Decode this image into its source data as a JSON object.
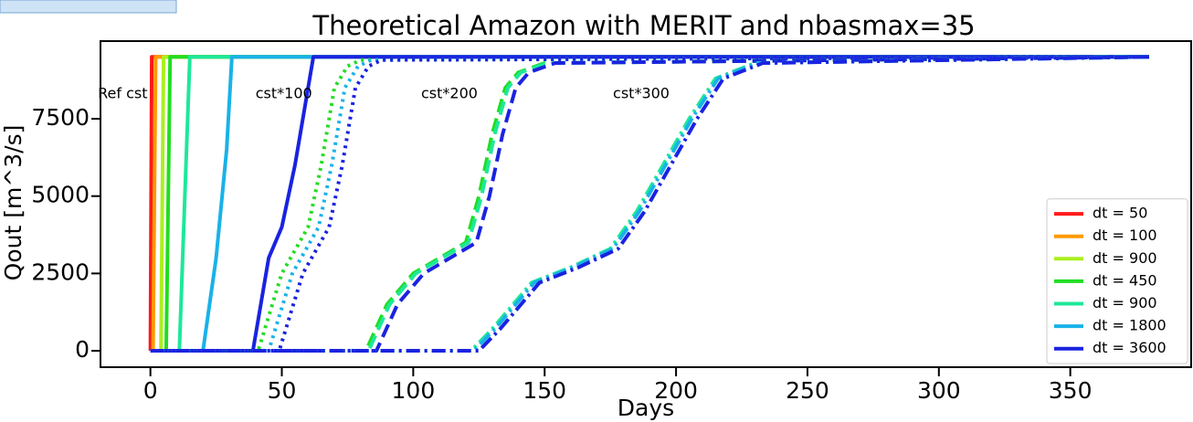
{
  "chart_data": {
    "type": "line",
    "title": "Theoretical Amazon with MERIT and nbasmax=35",
    "x_label": "Days",
    "y_label": "Qout [m^3/s]",
    "xlim": [
      -19,
      396
    ],
    "ylim": [
      -530,
      10010
    ],
    "xticks": [
      0,
      50,
      100,
      150,
      200,
      250,
      300,
      350
    ],
    "yticks": [
      0,
      2500,
      5000,
      7500
    ],
    "legend": "lower right",
    "annotations": [
      {
        "text": "Ref cst",
        "x": -20,
        "y": 8300
      },
      {
        "text": "cst*100",
        "x": 40,
        "y": 8300
      },
      {
        "text": "cst*200",
        "x": 103,
        "y": 8300
      },
      {
        "text": "cst*300",
        "x": 176,
        "y": 8300
      }
    ],
    "series": [
      {
        "name": "dt = 50",
        "color": "#ff1a1a",
        "style": "solid",
        "x": [
          0,
          0,
          0.5,
          380
        ],
        "values": [
          0,
          0,
          9500,
          9500
        ]
      },
      {
        "name": "dt = 100",
        "color": "#ff9900",
        "style": "solid",
        "x": [
          0,
          1,
          2,
          380
        ],
        "values": [
          0,
          0,
          9500,
          9500
        ]
      },
      {
        "name": "dt = 900",
        "color": "#aaf01e",
        "style": "solid",
        "x": [
          0,
          4,
          5,
          380
        ],
        "values": [
          0,
          0,
          9500,
          9500
        ]
      },
      {
        "name": "dt = 450",
        "color": "#22dd22",
        "style": "solid",
        "x": [
          0,
          6,
          7.5,
          380
        ],
        "values": [
          0,
          0,
          9500,
          9500
        ]
      },
      {
        "name": "dt = 900",
        "color": "#1de89a",
        "style": "solid",
        "x": [
          0,
          11,
          15,
          380
        ],
        "values": [
          0,
          0,
          9500,
          9500
        ]
      },
      {
        "name": "dt = 1800",
        "color": "#19b2e8",
        "style": "solid",
        "x": [
          0,
          20,
          25,
          29,
          31,
          380
        ],
        "values": [
          0,
          0,
          3000,
          6500,
          9500,
          9500
        ]
      },
      {
        "name": "dt = 3600",
        "color": "#1a23e0",
        "style": "solid",
        "x": [
          0,
          39,
          45,
          50,
          55,
          60,
          62,
          380
        ],
        "values": [
          0,
          0,
          3000,
          4000,
          6000,
          8500,
          9500,
          9500
        ]
      },
      {
        "color": "#22dd22",
        "style": "dotted",
        "x": [
          0,
          41,
          50,
          60,
          65,
          70,
          75,
          80,
          380
        ],
        "values": [
          0,
          0,
          2500,
          4000,
          6000,
          8500,
          9200,
          9400,
          9500
        ]
      },
      {
        "color": "#19b2e8",
        "style": "dotted",
        "x": [
          0,
          45,
          54,
          64,
          69,
          74,
          79,
          84,
          380
        ],
        "values": [
          0,
          0,
          2500,
          4000,
          6000,
          8500,
          9200,
          9400,
          9500
        ]
      },
      {
        "color": "#1a23e0",
        "style": "dotted",
        "x": [
          0,
          49,
          58,
          68,
          73,
          78,
          83,
          88,
          380
        ],
        "values": [
          0,
          0,
          2500,
          4000,
          6000,
          8500,
          9200,
          9400,
          9500
        ]
      },
      {
        "color": "#22dd22",
        "style": "dashed",
        "x": [
          0,
          82,
          90,
          100,
          110,
          120,
          125,
          130,
          135,
          140,
          150,
          380
        ],
        "values": [
          0,
          0,
          1500,
          2500,
          3000,
          3500,
          5000,
          7000,
          8500,
          9000,
          9300,
          9500
        ]
      },
      {
        "color": "#1de89a",
        "style": "dashed",
        "x": [
          0,
          83,
          91,
          101,
          111,
          121,
          126,
          131,
          136,
          141,
          151,
          380
        ],
        "values": [
          0,
          0,
          1500,
          2500,
          3000,
          3500,
          5000,
          7000,
          8500,
          9000,
          9300,
          9500
        ]
      },
      {
        "color": "#1a23e0",
        "style": "dashed",
        "x": [
          0,
          86,
          94,
          104,
          114,
          124,
          129,
          134,
          139,
          144,
          154,
          380
        ],
        "values": [
          0,
          0,
          1500,
          2500,
          3000,
          3500,
          5000,
          7000,
          8500,
          9000,
          9300,
          9500
        ]
      },
      {
        "color": "#1de89a",
        "style": "dashdot",
        "x": [
          0,
          122,
          130,
          145,
          160,
          175,
          185,
          195,
          205,
          215,
          230,
          380
        ],
        "values": [
          0,
          0,
          700,
          2200,
          2700,
          3300,
          4500,
          6000,
          7500,
          8800,
          9300,
          9500
        ]
      },
      {
        "color": "#19b2e8",
        "style": "dashdot",
        "x": [
          0,
          123,
          131,
          146,
          161,
          176,
          186,
          196,
          206,
          216,
          231,
          380
        ],
        "values": [
          0,
          0,
          700,
          2200,
          2700,
          3300,
          4500,
          6000,
          7500,
          8800,
          9300,
          9500
        ]
      },
      {
        "color": "#1a23e0",
        "style": "dashdot",
        "x": [
          0,
          125,
          133,
          148,
          163,
          178,
          188,
          198,
          208,
          218,
          233,
          380
        ],
        "values": [
          0,
          0,
          700,
          2200,
          2700,
          3300,
          4500,
          6000,
          7500,
          8800,
          9300,
          9500
        ]
      }
    ]
  }
}
